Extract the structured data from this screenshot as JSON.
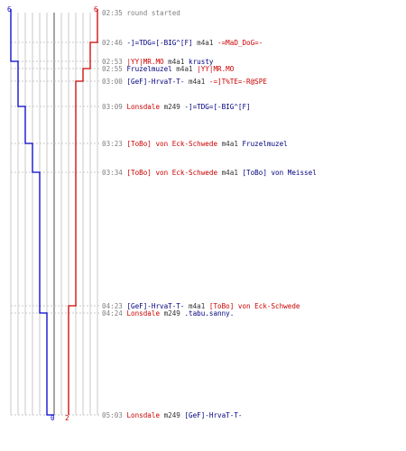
{
  "colors": {
    "red_team": "#cc0000",
    "blue_team": "#0000cc",
    "grid": "#c8c8c8",
    "center_line": "#7f7f7f",
    "dash": "#c8c8c8",
    "time": "#7f7f7f"
  },
  "scores": {
    "blue_start": "6",
    "red_start": "6",
    "blue_end": "0",
    "red_end": "2"
  },
  "events": [
    {
      "time": "02:35",
      "parts": [
        {
          "text": "round started",
          "c": "t"
        }
      ]
    },
    {
      "time": "02:46",
      "parts": [
        {
          "text": "-]=TDG=[-BIG^[F]",
          "c": "blue"
        },
        {
          "text": " m4a1 ",
          "c": "n"
        },
        {
          "text": "-=MaD_DoG=-",
          "c": "red"
        }
      ]
    },
    {
      "time": "02:53",
      "parts": [
        {
          "text": "|YY|MR.MO",
          "c": "red"
        },
        {
          "text": " m4a1 ",
          "c": "n"
        },
        {
          "text": "krusty",
          "c": "blue"
        }
      ]
    },
    {
      "time": "02:55",
      "parts": [
        {
          "text": "Fruzelmuzel",
          "c": "blue"
        },
        {
          "text": " m4a1 ",
          "c": "n"
        },
        {
          "text": "|YY|MR.MO",
          "c": "red"
        }
      ]
    },
    {
      "time": "03:00",
      "parts": [
        {
          "text": "[GeF]-HrvaT-T-",
          "c": "blue"
        },
        {
          "text": " m4a1 ",
          "c": "n"
        },
        {
          "text": "-=]T%TE=-R@SPE",
          "c": "red"
        }
      ]
    },
    {
      "time": "03:09",
      "parts": [
        {
          "text": "Lonsdale",
          "c": "red"
        },
        {
          "text": " m249 ",
          "c": "n"
        },
        {
          "text": "-]=TDG=[-BIG^[F]",
          "c": "blue"
        }
      ]
    },
    {
      "time": "03:23",
      "parts": [
        {
          "text": "[ToBo] von Eck-Schwede",
          "c": "red"
        },
        {
          "text": " m4a1 ",
          "c": "n"
        },
        {
          "text": "Fruzelmuzel",
          "c": "blue"
        }
      ]
    },
    {
      "time": "03:34",
      "parts": [
        {
          "text": "[ToBo] von Eck-Schwede",
          "c": "red"
        },
        {
          "text": " m4a1 ",
          "c": "n"
        },
        {
          "text": "[ToBo] von Meissel",
          "c": "blue"
        }
      ]
    },
    {
      "time": "04:23",
      "parts": [
        {
          "text": "[GeF]-HrvaT-T-",
          "c": "blue"
        },
        {
          "text": " m4a1 ",
          "c": "n"
        },
        {
          "text": "[ToBo] von Eck-Schwede",
          "c": "red"
        }
      ]
    },
    {
      "time": "04:24",
      "parts": [
        {
          "text": "Lonsdale",
          "c": "red"
        },
        {
          "text": " m249 ",
          "c": "n"
        },
        {
          "text": ".tabu.sanny.",
          "c": "blue"
        }
      ]
    },
    {
      "time": "05:03",
      "parts": [
        {
          "text": "Lonsdale",
          "c": "red"
        },
        {
          "text": " m249 ",
          "c": "n"
        },
        {
          "text": "[GeF]-HrvaT-T-",
          "c": "blue"
        }
      ]
    }
  ],
  "chart_data": {
    "type": "line",
    "x": [
      "02:35",
      "02:46",
      "02:53",
      "02:55",
      "03:00",
      "03:09",
      "03:23",
      "03:34",
      "04:23",
      "04:24",
      "05:03"
    ],
    "series": [
      {
        "team": "blue",
        "alive": [
          6,
          6,
          5,
          5,
          5,
          4,
          3,
          2,
          2,
          1,
          0
        ]
      },
      {
        "team": "red",
        "alive": [
          6,
          5,
          5,
          4,
          3,
          3,
          3,
          3,
          2,
          2,
          2
        ]
      }
    ],
    "ylim": [
      0,
      6
    ]
  }
}
